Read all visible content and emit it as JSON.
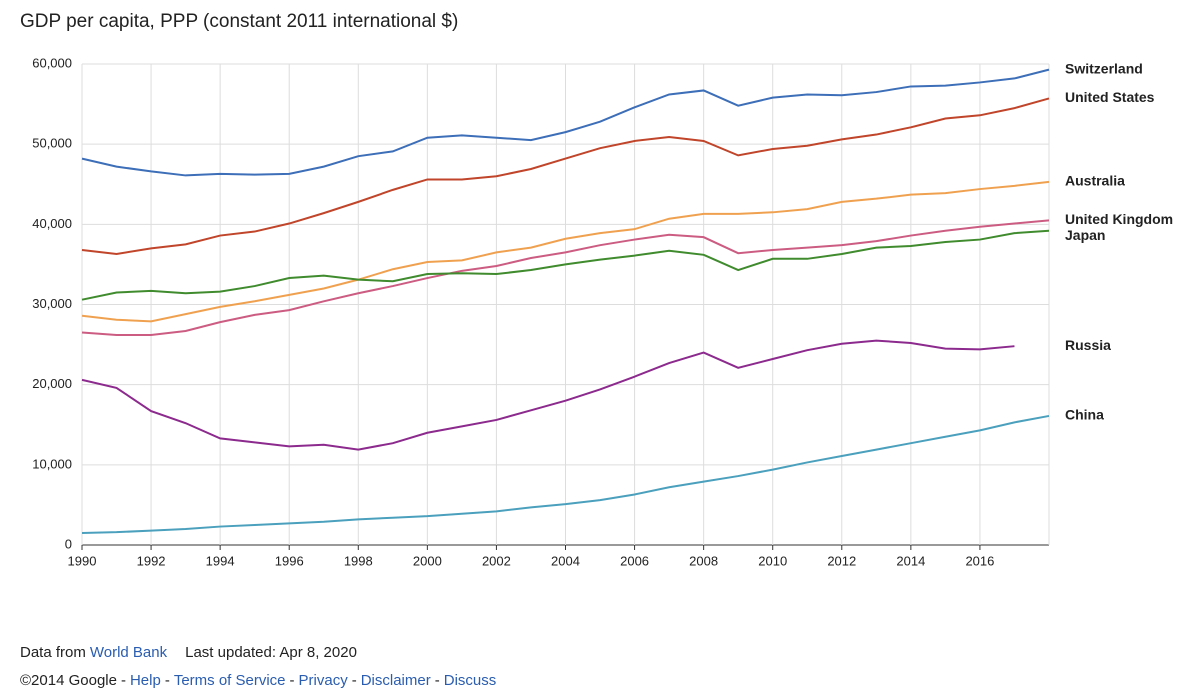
{
  "chart_data": {
    "type": "line",
    "title": "GDP per capita, PPP (constant 2011 international $)",
    "x": [
      1990,
      1991,
      1992,
      1993,
      1994,
      1995,
      1996,
      1997,
      1998,
      1999,
      2000,
      2001,
      2002,
      2003,
      2004,
      2005,
      2006,
      2007,
      2008,
      2009,
      2010,
      2011,
      2012,
      2013,
      2014,
      2015,
      2016,
      2017,
      2018
    ],
    "xlim": [
      1990,
      2018
    ],
    "xticks": [
      1990,
      1992,
      1994,
      1996,
      1998,
      2000,
      2002,
      2004,
      2006,
      2008,
      2010,
      2012,
      2014,
      2016
    ],
    "ylim": [
      0,
      60000
    ],
    "yticks": [
      0,
      {
        "value": 10000,
        "label": "10,000"
      },
      {
        "value": 20000,
        "label": "20,000"
      },
      {
        "value": 30000,
        "label": "30,000"
      },
      {
        "value": 40000,
        "label": "40,000"
      },
      {
        "value": 50000,
        "label": "50,000"
      },
      {
        "value": 60000,
        "label": "60,000"
      }
    ],
    "grid": true,
    "legend": "right",
    "series": [
      {
        "name": "Switzerland",
        "color": "#3d6eb8",
        "values": [
          48200,
          47200,
          46600,
          46100,
          46300,
          46200,
          46300,
          47200,
          48500,
          49100,
          50800,
          51100,
          50800,
          50500,
          51500,
          52800,
          54600,
          56200,
          56700,
          54800,
          55800,
          56200,
          56100,
          56500,
          57200,
          57300,
          57700,
          58200,
          59300
        ]
      },
      {
        "name": "United States",
        "color": "#c0452a",
        "values": [
          36800,
          36300,
          37000,
          37500,
          38600,
          39100,
          40100,
          41400,
          42800,
          44300,
          45600,
          45600,
          46000,
          46900,
          48200,
          49500,
          50400,
          50900,
          50400,
          48600,
          49400,
          49800,
          50600,
          51200,
          52100,
          53200,
          53600,
          54500,
          55700
        ]
      },
      {
        "name": "Australia",
        "color": "#f0a150",
        "values": [
          28600,
          28100,
          27900,
          28800,
          29700,
          30400,
          31200,
          32000,
          33100,
          34400,
          35300,
          35500,
          36500,
          37100,
          38200,
          38900,
          39400,
          40700,
          41300,
          41300,
          41500,
          41900,
          42800,
          43200,
          43700,
          43900,
          44400,
          44800,
          45300
        ]
      },
      {
        "name": "United Kingdom",
        "color": "#cc5c82",
        "values": [
          26500,
          26200,
          26200,
          26700,
          27800,
          28700,
          29300,
          30400,
          31400,
          32300,
          33300,
          34200,
          34800,
          35800,
          36500,
          37400,
          38100,
          38700,
          38400,
          36400,
          36800,
          37100,
          37400,
          37900,
          38600,
          39200,
          39700,
          40100,
          40500
        ]
      },
      {
        "name": "Japan",
        "color": "#3f8b2d",
        "values": [
          30600,
          31500,
          31700,
          31400,
          31600,
          32300,
          33300,
          33600,
          33100,
          32900,
          33800,
          33900,
          33800,
          34300,
          35000,
          35600,
          36100,
          36700,
          36200,
          34300,
          35700,
          35700,
          36300,
          37100,
          37300,
          37800,
          38100,
          38900,
          39200
        ]
      },
      {
        "name": "Russia",
        "color": "#8c2a8e",
        "values": [
          20600,
          19600,
          16700,
          15200,
          13300,
          12800,
          12300,
          12500,
          11900,
          12700,
          14000,
          14800,
          15600,
          16800,
          18000,
          19400,
          21000,
          22700,
          24000,
          22100,
          23200,
          24300,
          25100,
          25500,
          25200,
          24500,
          24400,
          24800,
          null
        ]
      },
      {
        "name": "China",
        "color": "#4aa0bd",
        "values": [
          1500,
          1600,
          1800,
          2000,
          2300,
          2500,
          2700,
          2900,
          3200,
          3400,
          3600,
          3900,
          4200,
          4700,
          5100,
          5600,
          6300,
          7200,
          7900,
          8600,
          9400,
          10300,
          11100,
          11900,
          12700,
          13500,
          14300,
          15300,
          16100
        ]
      }
    ]
  },
  "footer": {
    "source_prefix": "Data from",
    "source_link": "World Bank",
    "updated": "Last updated: Apr 8, 2020",
    "copyright": "©2014 Google",
    "separator": "-",
    "links": [
      "Help",
      "Terms of Service",
      "Privacy",
      "Disclaimer",
      "Discuss"
    ]
  }
}
